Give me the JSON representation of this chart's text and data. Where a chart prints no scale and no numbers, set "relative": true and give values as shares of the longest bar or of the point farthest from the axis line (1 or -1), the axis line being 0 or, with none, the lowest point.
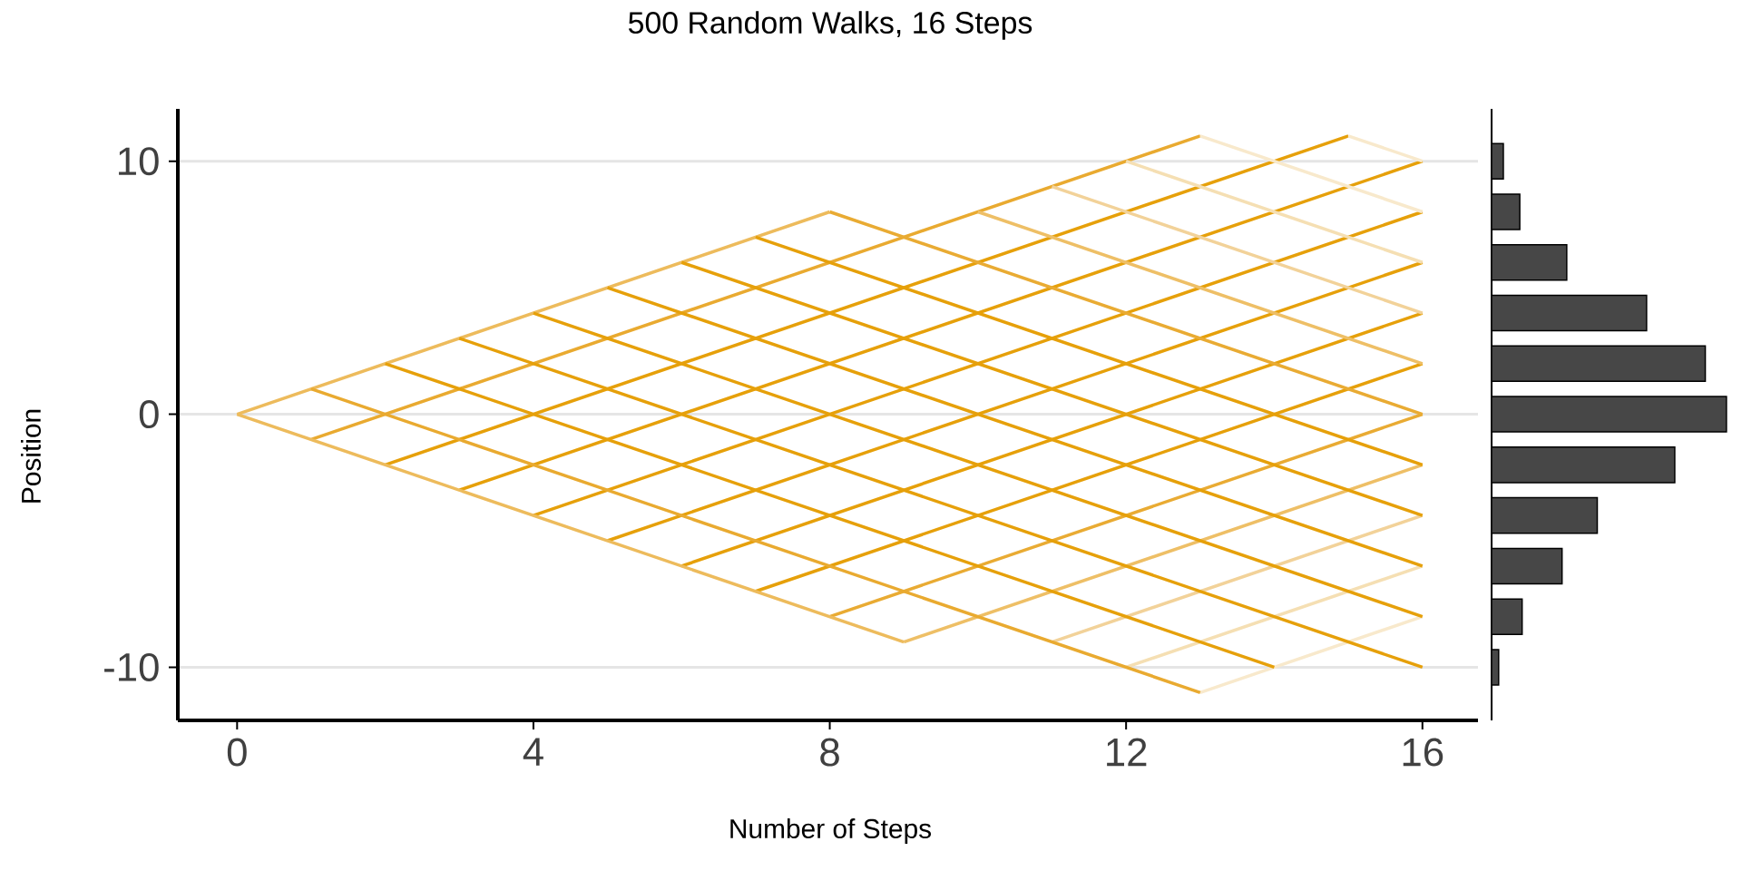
{
  "chart_data": [
    {
      "type": "line",
      "title": "500 Random Walks, 16 Steps",
      "xlabel": "Number of Steps",
      "ylabel": "Position",
      "xlim": [
        -0.8,
        16.75
      ],
      "ylim": [
        -12.1,
        12.07
      ],
      "xticks": [
        0,
        4,
        8,
        12,
        16
      ],
      "yticks": [
        -10,
        0,
        10
      ],
      "grid": "y",
      "marker": "none",
      "line_style": "solid",
      "series": [
        {
          "x": [
            0,
            8
          ],
          "values": [
            0,
            8
          ],
          "color": "#edbb5c"
        },
        {
          "x": [
            1,
            13
          ],
          "values": [
            -1,
            11
          ],
          "color": "#e9aa30"
        },
        {
          "x": [
            2,
            15
          ],
          "values": [
            -2,
            11
          ],
          "color": "#e6a00a"
        },
        {
          "x": [
            3,
            16
          ],
          "values": [
            -3,
            10
          ],
          "color": "#e6a00a"
        },
        {
          "x": [
            4,
            16
          ],
          "values": [
            -4,
            8
          ],
          "color": "#e6a00a"
        },
        {
          "x": [
            5,
            16
          ],
          "values": [
            -5,
            6
          ],
          "color": "#e6a00a"
        },
        {
          "x": [
            6,
            16
          ],
          "values": [
            -6,
            4
          ],
          "color": "#e6a00a"
        },
        {
          "x": [
            7,
            16
          ],
          "values": [
            -7,
            2
          ],
          "color": "#e6a00a"
        },
        {
          "x": [
            8,
            16
          ],
          "values": [
            -8,
            0
          ],
          "color": "#e9ab33"
        },
        {
          "x": [
            9,
            16
          ],
          "values": [
            -9,
            -2
          ],
          "color": "#eebf66"
        },
        {
          "x": [
            11,
            16
          ],
          "values": [
            -9,
            -4
          ],
          "color": "#f2d299"
        },
        {
          "x": [
            12,
            16
          ],
          "values": [
            -10,
            -6
          ],
          "color": "#f5dfb3"
        },
        {
          "x": [
            13,
            16
          ],
          "values": [
            -11,
            -8
          ],
          "color": "#f8e9cc"
        },
        {
          "x": [
            0,
            9
          ],
          "values": [
            0,
            -9
          ],
          "color": "#edbb5c"
        },
        {
          "x": [
            1,
            13
          ],
          "values": [
            1,
            -11
          ],
          "color": "#e9aa30"
        },
        {
          "x": [
            2,
            14
          ],
          "values": [
            2,
            -10
          ],
          "color": "#e6a00a"
        },
        {
          "x": [
            3,
            16
          ],
          "values": [
            3,
            -10
          ],
          "color": "#e6a00a"
        },
        {
          "x": [
            4,
            16
          ],
          "values": [
            4,
            -8
          ],
          "color": "#e6a00a"
        },
        {
          "x": [
            5,
            16
          ],
          "values": [
            5,
            -6
          ],
          "color": "#e6a00a"
        },
        {
          "x": [
            6,
            16
          ],
          "values": [
            6,
            -4
          ],
          "color": "#e6a00a"
        },
        {
          "x": [
            7,
            16
          ],
          "values": [
            7,
            -2
          ],
          "color": "#e6a00a"
        },
        {
          "x": [
            8,
            16
          ],
          "values": [
            8,
            0
          ],
          "color": "#e9ab33"
        },
        {
          "x": [
            10,
            16
          ],
          "values": [
            8,
            2
          ],
          "color": "#eebf66"
        },
        {
          "x": [
            11,
            16
          ],
          "values": [
            9,
            4
          ],
          "color": "#f2d299"
        },
        {
          "x": [
            12,
            16
          ],
          "values": [
            10,
            6
          ],
          "color": "#f5dfb3"
        },
        {
          "x": [
            13,
            16
          ],
          "values": [
            11,
            8
          ],
          "color": "#f8e9cc"
        },
        {
          "x": [
            15,
            16
          ],
          "values": [
            11,
            10
          ],
          "color": "#f8e9cc"
        }
      ]
    },
    {
      "type": "bar",
      "orientation": "horizontal",
      "relative": true,
      "color": "#474747",
      "categories": [
        null,
        null,
        null,
        null,
        null,
        null,
        null,
        null,
        null,
        null,
        null
      ],
      "values": [
        0.05,
        0.12,
        0.32,
        0.66,
        0.91,
        1,
        0.78,
        0.45,
        0.3,
        0.13,
        0.03
      ]
    }
  ]
}
